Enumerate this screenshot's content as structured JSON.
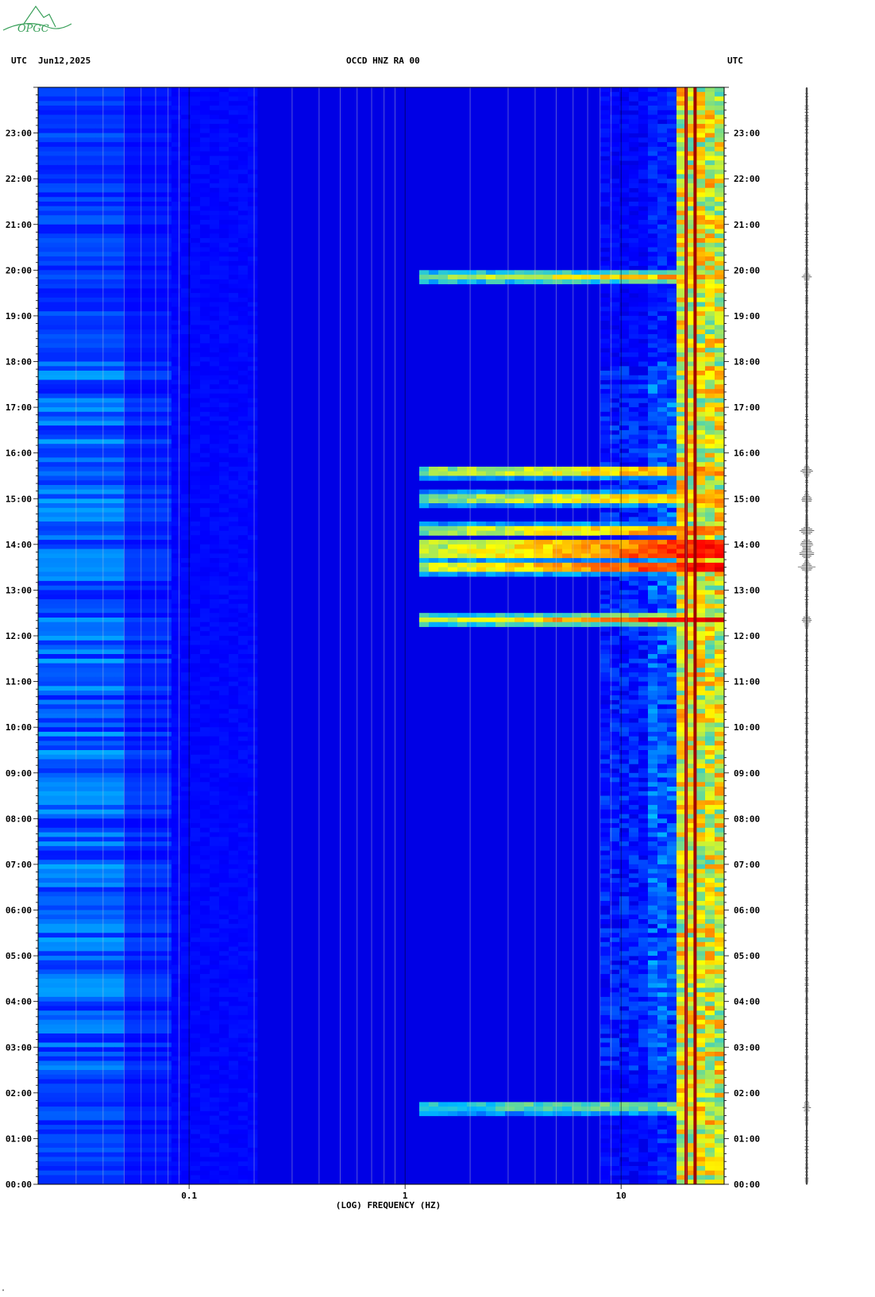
{
  "logo": {
    "text": "OPGC",
    "color": "#3aa05a"
  },
  "header": {
    "left_tz": "UTC",
    "date": "Jun12,2025",
    "station": "OCCD HNZ RA 00",
    "right_tz": "UTC"
  },
  "footer_mark": "\"",
  "chart_data": {
    "type": "heatmap",
    "title": "OCCD HNZ RA 00",
    "xlabel": "(LOG) FREQUENCY (HZ)",
    "ylabel": "",
    "x_scale": "log",
    "x_range_hz": [
      0.02,
      30
    ],
    "x_ticks": [
      {
        "value": 0.1,
        "label": "0.1"
      },
      {
        "value": 1,
        "label": "1"
      },
      {
        "value": 10,
        "label": "10"
      }
    ],
    "y_range_hours": [
      0,
      24
    ],
    "y_ticks": [
      "00:00",
      "01:00",
      "02:00",
      "03:00",
      "04:00",
      "05:00",
      "06:00",
      "07:00",
      "08:00",
      "09:00",
      "10:00",
      "11:00",
      "12:00",
      "13:00",
      "14:00",
      "15:00",
      "16:00",
      "17:00",
      "18:00",
      "19:00",
      "20:00",
      "21:00",
      "22:00",
      "23:00"
    ],
    "colormap": [
      "#00007f",
      "#0000ff",
      "#00bfff",
      "#ffff00",
      "#ff0000",
      "#7f0000"
    ],
    "strong_lines_hz": [
      20,
      22
    ],
    "events_hours": [
      {
        "hour": 13.5,
        "level": 1.0
      },
      {
        "hour": 13.8,
        "level": 1.0
      },
      {
        "hour": 14.0,
        "level": 0.95
      },
      {
        "hour": 14.3,
        "level": 0.8
      },
      {
        "hour": 15.0,
        "level": 0.7
      },
      {
        "hour": 15.6,
        "level": 0.75
      },
      {
        "hour": 12.35,
        "level": 0.7
      },
      {
        "hour": 19.85,
        "level": 0.5
      },
      {
        "hour": 1.7,
        "level": 0.35
      }
    ],
    "trace_label": "",
    "grid": true
  }
}
